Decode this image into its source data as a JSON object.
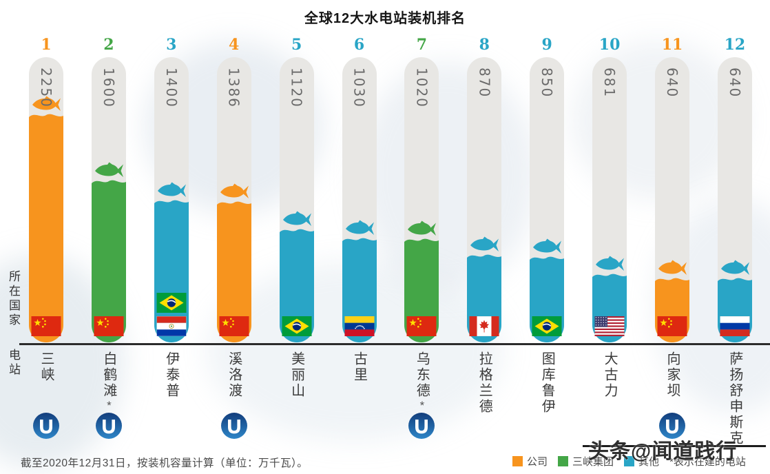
{
  "title": "全球12大水电站装机排名",
  "left_labels": {
    "country": "所在国家",
    "station": "电站"
  },
  "footnote": "截至2020年12月31日，按装机容量计算（单位：万千瓦）。",
  "legend": {
    "items": [
      {
        "label": "公司",
        "color": "#F7941E"
      },
      {
        "label": "三峡集团",
        "color": "#44A647"
      },
      {
        "label": "其他",
        "color": "#29A5C6"
      }
    ],
    "note": "*表示在建的电站"
  },
  "watermark": "头条@闻道践行",
  "chart_data": {
    "type": "bar",
    "title": "全球12大水电站装机排名",
    "unit": "万千瓦",
    "max_value": 2250,
    "legend_position": "bottom-right",
    "colors": {
      "orange": "#F7941E",
      "green": "#44A647",
      "teal": "#29A5C6"
    },
    "stations": [
      {
        "rank": 1,
        "name": "三峡",
        "value": 2250,
        "group": "公司",
        "color_key": "orange",
        "flags": [
          "cn"
        ],
        "under_construction": false,
        "ctg_logo": true
      },
      {
        "rank": 2,
        "name": "白鹤滩",
        "value": 1600,
        "group": "三峡集团",
        "color_key": "green",
        "flags": [
          "cn"
        ],
        "under_construction": true,
        "ctg_logo": true
      },
      {
        "rank": 3,
        "name": "伊泰普",
        "value": 1400,
        "group": "其他",
        "color_key": "teal",
        "flags": [
          "br",
          "py"
        ],
        "under_construction": false,
        "ctg_logo": false
      },
      {
        "rank": 4,
        "name": "溪洛渡",
        "value": 1386,
        "group": "公司",
        "color_key": "orange",
        "flags": [
          "cn"
        ],
        "under_construction": false,
        "ctg_logo": true
      },
      {
        "rank": 5,
        "name": "美丽山",
        "value": 1120,
        "group": "其他",
        "color_key": "teal",
        "flags": [
          "br"
        ],
        "under_construction": false,
        "ctg_logo": false
      },
      {
        "rank": 6,
        "name": "古里",
        "value": 1030,
        "group": "其他",
        "color_key": "teal",
        "flags": [
          "ve"
        ],
        "under_construction": false,
        "ctg_logo": false
      },
      {
        "rank": 7,
        "name": "乌东德",
        "value": 1020,
        "group": "三峡集团",
        "color_key": "green",
        "flags": [
          "cn"
        ],
        "under_construction": true,
        "ctg_logo": true
      },
      {
        "rank": 8,
        "name": "拉格兰德",
        "value": 870,
        "group": "其他",
        "color_key": "teal",
        "flags": [
          "ca"
        ],
        "under_construction": false,
        "ctg_logo": false
      },
      {
        "rank": 9,
        "name": "图库鲁伊",
        "value": 850,
        "group": "其他",
        "color_key": "teal",
        "flags": [
          "br"
        ],
        "under_construction": false,
        "ctg_logo": false
      },
      {
        "rank": 10,
        "name": "大古力",
        "value": 681,
        "group": "其他",
        "color_key": "teal",
        "flags": [
          "us"
        ],
        "under_construction": false,
        "ctg_logo": false
      },
      {
        "rank": 11,
        "name": "向家坝",
        "value": 640,
        "group": "公司",
        "color_key": "orange",
        "flags": [
          "cn"
        ],
        "under_construction": false,
        "ctg_logo": true
      },
      {
        "rank": 12,
        "name": "萨扬舒申斯克",
        "value": 640,
        "group": "其他",
        "color_key": "teal",
        "flags": [
          "ru"
        ],
        "under_construction": false,
        "ctg_logo": false
      }
    ]
  }
}
